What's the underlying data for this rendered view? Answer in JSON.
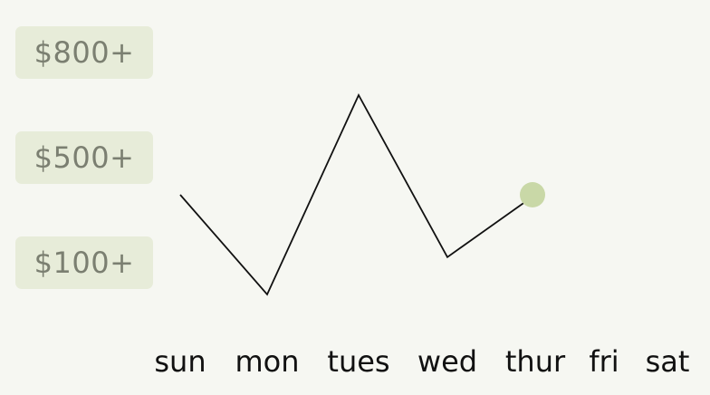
{
  "chart_data": {
    "type": "line",
    "categories": [
      "sun",
      "mon",
      "tues",
      "wed",
      "thur",
      "fri",
      "sat"
    ],
    "y_tick_labels": [
      "$800+",
      "$500+",
      "$100+"
    ],
    "values": [
      500,
      100,
      900,
      250,
      500,
      null,
      null
    ],
    "line_color": "#111111",
    "marker_color": "#c9d8a7",
    "tick_label_bg": "#e7ecd9",
    "grid": false,
    "legend": "none"
  }
}
